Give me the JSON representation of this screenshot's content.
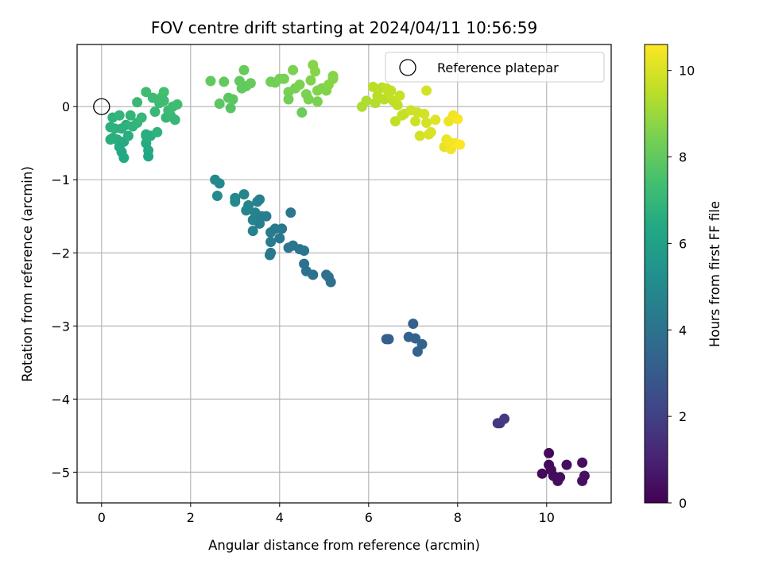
{
  "chart_data": {
    "type": "scatter",
    "title": "FOV centre drift starting at 2024/04/11 10:56:59",
    "xlabel": "Angular distance from reference (arcmin)",
    "ylabel": "Rotation from reference (arcmin)",
    "xlim": [
      -0.55,
      11.45
    ],
    "ylim": [
      -5.42,
      0.85
    ],
    "xticks": [
      0,
      2,
      4,
      6,
      8,
      10
    ],
    "yticks": [
      0,
      -1,
      -2,
      -3,
      -4,
      -5
    ],
    "grid": true,
    "legend": {
      "placement": "top-right",
      "entries": [
        "Reference platepar"
      ]
    },
    "reference_point": {
      "x": 0,
      "y": 0
    },
    "colorbar": {
      "label": "Hours from first FF file",
      "colormap": "viridis",
      "range": [
        0,
        10.6
      ],
      "ticks": [
        0,
        2,
        4,
        6,
        8,
        10
      ]
    },
    "points": [
      {
        "x": 9.9,
        "y": -5.02,
        "c": 0.2
      },
      {
        "x": 10.05,
        "y": -4.74,
        "c": 0.2
      },
      {
        "x": 10.05,
        "y": -4.9,
        "c": 0.25
      },
      {
        "x": 10.1,
        "y": -4.97,
        "c": 0.3
      },
      {
        "x": 10.15,
        "y": -5.05,
        "c": 0.3
      },
      {
        "x": 10.25,
        "y": -5.12,
        "c": 0.35
      },
      {
        "x": 10.3,
        "y": -5.07,
        "c": 0.35
      },
      {
        "x": 10.45,
        "y": -4.9,
        "c": 0.4
      },
      {
        "x": 10.8,
        "y": -4.87,
        "c": 0.4
      },
      {
        "x": 10.85,
        "y": -5.05,
        "c": 0.45
      },
      {
        "x": 10.8,
        "y": -5.12,
        "c": 0.45
      },
      {
        "x": 8.9,
        "y": -4.33,
        "c": 1.7
      },
      {
        "x": 8.95,
        "y": -4.33,
        "c": 1.75
      },
      {
        "x": 9.05,
        "y": -4.27,
        "c": 1.8
      },
      {
        "x": 6.4,
        "y": -3.18,
        "c": 3.2
      },
      {
        "x": 6.45,
        "y": -3.18,
        "c": 3.2
      },
      {
        "x": 6.9,
        "y": -3.15,
        "c": 3.3
      },
      {
        "x": 7.0,
        "y": -2.97,
        "c": 3.3
      },
      {
        "x": 7.05,
        "y": -3.17,
        "c": 3.35
      },
      {
        "x": 7.1,
        "y": -3.35,
        "c": 3.35
      },
      {
        "x": 7.2,
        "y": -3.25,
        "c": 3.4
      },
      {
        "x": 2.55,
        "y": -1.0,
        "c": 5.0
      },
      {
        "x": 2.65,
        "y": -1.05,
        "c": 5.0
      },
      {
        "x": 2.6,
        "y": -1.22,
        "c": 5.0
      },
      {
        "x": 3.0,
        "y": -1.3,
        "c": 4.9
      },
      {
        "x": 3.0,
        "y": -1.25,
        "c": 4.9
      },
      {
        "x": 3.2,
        "y": -1.2,
        "c": 4.8
      },
      {
        "x": 3.3,
        "y": -1.35,
        "c": 4.8
      },
      {
        "x": 3.25,
        "y": -1.42,
        "c": 4.8
      },
      {
        "x": 3.4,
        "y": -1.55,
        "c": 4.7
      },
      {
        "x": 3.45,
        "y": -1.45,
        "c": 4.7
      },
      {
        "x": 3.4,
        "y": -1.7,
        "c": 4.6
      },
      {
        "x": 3.5,
        "y": -1.3,
        "c": 4.6
      },
      {
        "x": 3.55,
        "y": -1.27,
        "c": 4.6
      },
      {
        "x": 3.6,
        "y": -1.5,
        "c": 4.5
      },
      {
        "x": 3.55,
        "y": -1.6,
        "c": 4.5
      },
      {
        "x": 3.7,
        "y": -1.5,
        "c": 4.5
      },
      {
        "x": 3.8,
        "y": -1.72,
        "c": 4.4
      },
      {
        "x": 3.8,
        "y": -1.85,
        "c": 4.4
      },
      {
        "x": 3.8,
        "y": -2.0,
        "c": 4.3
      },
      {
        "x": 3.9,
        "y": -1.67,
        "c": 4.3
      },
      {
        "x": 4.0,
        "y": -1.8,
        "c": 4.3
      },
      {
        "x": 4.05,
        "y": -1.67,
        "c": 4.2
      },
      {
        "x": 4.2,
        "y": -1.93,
        "c": 4.2
      },
      {
        "x": 4.25,
        "y": -1.45,
        "c": 4.2
      },
      {
        "x": 4.3,
        "y": -1.9,
        "c": 4.1
      },
      {
        "x": 4.45,
        "y": -1.95,
        "c": 4.1
      },
      {
        "x": 4.55,
        "y": -1.97,
        "c": 4.1
      },
      {
        "x": 4.55,
        "y": -2.15,
        "c": 4.0
      },
      {
        "x": 4.6,
        "y": -2.25,
        "c": 4.0
      },
      {
        "x": 4.75,
        "y": -2.3,
        "c": 4.0
      },
      {
        "x": 5.05,
        "y": -2.3,
        "c": 3.9
      },
      {
        "x": 5.1,
        "y": -2.33,
        "c": 3.9
      },
      {
        "x": 5.15,
        "y": -2.4,
        "c": 3.9
      },
      {
        "x": 3.78,
        "y": -2.03,
        "c": 4.3
      },
      {
        "x": 0.2,
        "y": -0.28,
        "c": 6.7
      },
      {
        "x": 0.25,
        "y": -0.43,
        "c": 6.7
      },
      {
        "x": 0.25,
        "y": -0.15,
        "c": 6.8
      },
      {
        "x": 0.3,
        "y": -0.3,
        "c": 6.8
      },
      {
        "x": 0.35,
        "y": -0.45,
        "c": 6.6
      },
      {
        "x": 0.4,
        "y": -0.55,
        "c": 6.5
      },
      {
        "x": 0.4,
        "y": -0.12,
        "c": 6.9
      },
      {
        "x": 0.45,
        "y": -0.62,
        "c": 6.4
      },
      {
        "x": 0.5,
        "y": -0.7,
        "c": 6.4
      },
      {
        "x": 0.5,
        "y": -0.48,
        "c": 6.5
      },
      {
        "x": 0.55,
        "y": -0.25,
        "c": 6.7
      },
      {
        "x": 0.6,
        "y": -0.4,
        "c": 6.6
      },
      {
        "x": 0.65,
        "y": -0.12,
        "c": 6.9
      },
      {
        "x": 0.7,
        "y": -0.27,
        "c": 6.8
      },
      {
        "x": 0.8,
        "y": -0.22,
        "c": 6.9
      },
      {
        "x": 0.8,
        "y": 0.06,
        "c": 7.1
      },
      {
        "x": 0.9,
        "y": -0.15,
        "c": 7.0
      },
      {
        "x": 1.0,
        "y": -0.4,
        "c": 6.6
      },
      {
        "x": 1.0,
        "y": -0.5,
        "c": 6.5
      },
      {
        "x": 1.05,
        "y": -0.6,
        "c": 6.4
      },
      {
        "x": 1.05,
        "y": -0.68,
        "c": 6.3
      },
      {
        "x": 1.0,
        "y": 0.2,
        "c": 7.3
      },
      {
        "x": 1.1,
        "y": -0.4,
        "c": 6.6
      },
      {
        "x": 1.15,
        "y": 0.12,
        "c": 7.2
      },
      {
        "x": 1.2,
        "y": -0.07,
        "c": 7.1
      },
      {
        "x": 1.25,
        "y": -0.35,
        "c": 6.8
      },
      {
        "x": 1.3,
        "y": 0.05,
        "c": 7.2
      },
      {
        "x": 1.35,
        "y": 0.13,
        "c": 7.3
      },
      {
        "x": 1.4,
        "y": 0.2,
        "c": 7.4
      },
      {
        "x": 1.45,
        "y": -0.15,
        "c": 7.0
      },
      {
        "x": 1.5,
        "y": -0.05,
        "c": 7.1
      },
      {
        "x": 1.55,
        "y": -0.12,
        "c": 7.1
      },
      {
        "x": 1.6,
        "y": 0.0,
        "c": 7.2
      },
      {
        "x": 1.65,
        "y": -0.18,
        "c": 7.0
      },
      {
        "x": 1.7,
        "y": 0.03,
        "c": 7.3
      },
      {
        "x": 1.4,
        "y": 0.08,
        "c": 7.3
      },
      {
        "x": 1.0,
        "y": -0.38,
        "c": 6.6
      },
      {
        "x": 0.2,
        "y": -0.45,
        "c": 6.6
      },
      {
        "x": 0.45,
        "y": -0.3,
        "c": 6.7
      },
      {
        "x": 2.45,
        "y": 0.35,
        "c": 8.0
      },
      {
        "x": 2.65,
        "y": 0.04,
        "c": 7.9
      },
      {
        "x": 2.75,
        "y": 0.34,
        "c": 8.0
      },
      {
        "x": 2.85,
        "y": 0.12,
        "c": 7.9
      },
      {
        "x": 2.9,
        "y": -0.02,
        "c": 7.8
      },
      {
        "x": 2.95,
        "y": 0.1,
        "c": 7.9
      },
      {
        "x": 3.1,
        "y": 0.35,
        "c": 8.0
      },
      {
        "x": 3.15,
        "y": 0.25,
        "c": 8.0
      },
      {
        "x": 3.2,
        "y": 0.5,
        "c": 8.1
      },
      {
        "x": 3.25,
        "y": 0.28,
        "c": 8.0
      },
      {
        "x": 3.35,
        "y": 0.32,
        "c": 8.1
      },
      {
        "x": 3.8,
        "y": 0.34,
        "c": 8.3
      },
      {
        "x": 3.9,
        "y": 0.33,
        "c": 8.3
      },
      {
        "x": 4.0,
        "y": 0.38,
        "c": 8.4
      },
      {
        "x": 4.1,
        "y": 0.38,
        "c": 8.4
      },
      {
        "x": 4.2,
        "y": 0.2,
        "c": 8.4
      },
      {
        "x": 4.2,
        "y": 0.1,
        "c": 8.3
      },
      {
        "x": 4.3,
        "y": 0.5,
        "c": 8.5
      },
      {
        "x": 4.35,
        "y": 0.25,
        "c": 8.4
      },
      {
        "x": 4.45,
        "y": 0.3,
        "c": 8.5
      },
      {
        "x": 4.5,
        "y": -0.08,
        "c": 8.2
      },
      {
        "x": 4.6,
        "y": 0.17,
        "c": 8.5
      },
      {
        "x": 4.65,
        "y": 0.1,
        "c": 8.5
      },
      {
        "x": 4.7,
        "y": 0.36,
        "c": 8.6
      },
      {
        "x": 4.75,
        "y": 0.57,
        "c": 8.7
      },
      {
        "x": 4.8,
        "y": 0.48,
        "c": 8.7
      },
      {
        "x": 4.85,
        "y": 0.22,
        "c": 8.6
      },
      {
        "x": 4.85,
        "y": 0.07,
        "c": 8.5
      },
      {
        "x": 4.95,
        "y": 0.25,
        "c": 8.6
      },
      {
        "x": 5.05,
        "y": 0.22,
        "c": 8.6
      },
      {
        "x": 5.1,
        "y": 0.3,
        "c": 8.7
      },
      {
        "x": 5.2,
        "y": 0.42,
        "c": 8.7
      },
      {
        "x": 5.2,
        "y": 0.38,
        "c": 8.7
      },
      {
        "x": 5.85,
        "y": 0.0,
        "c": 9.3
      },
      {
        "x": 5.95,
        "y": 0.08,
        "c": 9.3
      },
      {
        "x": 6.1,
        "y": 0.27,
        "c": 9.5
      },
      {
        "x": 6.15,
        "y": 0.05,
        "c": 9.4
      },
      {
        "x": 6.2,
        "y": 0.15,
        "c": 9.5
      },
      {
        "x": 6.3,
        "y": 0.26,
        "c": 9.5
      },
      {
        "x": 6.35,
        "y": 0.1,
        "c": 9.5
      },
      {
        "x": 6.4,
        "y": 0.25,
        "c": 9.6
      },
      {
        "x": 6.45,
        "y": 0.18,
        "c": 9.6
      },
      {
        "x": 6.5,
        "y": 0.22,
        "c": 9.6
      },
      {
        "x": 6.55,
        "y": 0.08,
        "c": 9.6
      },
      {
        "x": 6.6,
        "y": -0.2,
        "c": 9.6
      },
      {
        "x": 6.65,
        "y": 0.02,
        "c": 9.6
      },
      {
        "x": 6.7,
        "y": 0.15,
        "c": 9.7
      },
      {
        "x": 6.75,
        "y": -0.12,
        "c": 9.7
      },
      {
        "x": 6.8,
        "y": -0.1,
        "c": 9.7
      },
      {
        "x": 6.95,
        "y": -0.05,
        "c": 9.8
      },
      {
        "x": 7.05,
        "y": -0.2,
        "c": 9.8
      },
      {
        "x": 7.1,
        "y": -0.08,
        "c": 9.8
      },
      {
        "x": 7.15,
        "y": -0.4,
        "c": 9.9
      },
      {
        "x": 7.25,
        "y": -0.1,
        "c": 9.9
      },
      {
        "x": 7.3,
        "y": 0.22,
        "c": 9.9
      },
      {
        "x": 7.3,
        "y": -0.22,
        "c": 9.9
      },
      {
        "x": 7.35,
        "y": -0.38,
        "c": 10.0
      },
      {
        "x": 7.4,
        "y": -0.35,
        "c": 10.0
      },
      {
        "x": 7.5,
        "y": -0.18,
        "c": 10.1
      },
      {
        "x": 7.7,
        "y": -0.55,
        "c": 10.2
      },
      {
        "x": 7.75,
        "y": -0.45,
        "c": 10.3
      },
      {
        "x": 7.8,
        "y": -0.2,
        "c": 10.3
      },
      {
        "x": 7.85,
        "y": -0.58,
        "c": 10.4
      },
      {
        "x": 7.9,
        "y": -0.12,
        "c": 10.4
      },
      {
        "x": 7.95,
        "y": -0.5,
        "c": 10.5
      },
      {
        "x": 8.0,
        "y": -0.17,
        "c": 10.5
      },
      {
        "x": 8.05,
        "y": -0.52,
        "c": 10.6
      },
      {
        "x": 7.8,
        "y": -0.48,
        "c": 10.4
      }
    ]
  }
}
